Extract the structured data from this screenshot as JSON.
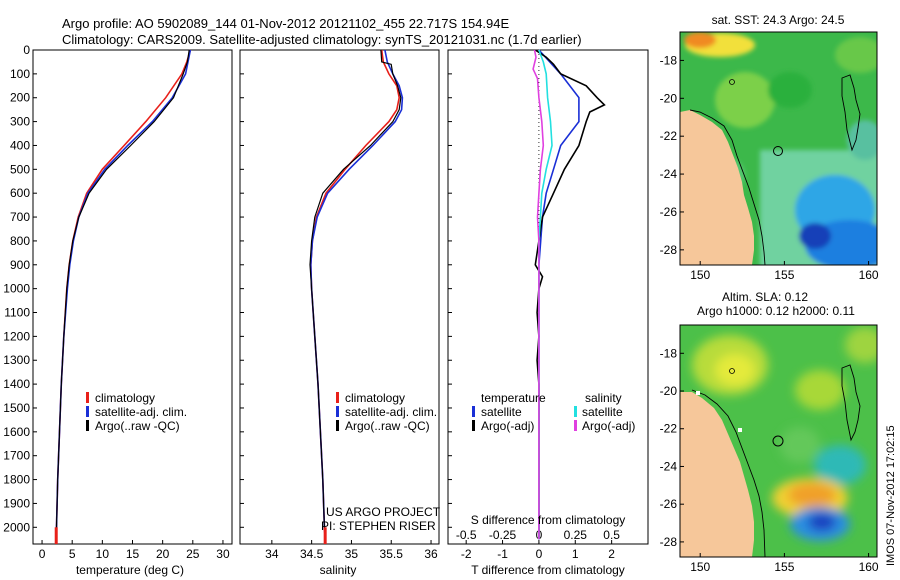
{
  "header": {
    "line1": "Argo profile: AO 5902089_144 01-Nov-2012 20121102_455 22.717S 154.94E",
    "line2": "Climatology: CARS2009. Satellite-adjusted climatology: synTS_20121031.nc (1.7d earlier)"
  },
  "colors": {
    "climatology": "#e8201a",
    "satellite": "#1a2fd6",
    "argo": "#000000",
    "s_satellite": "#22e0e0",
    "s_argo": "#e040e0",
    "land": "#f6c79a"
  },
  "chart_data": [
    {
      "type": "line",
      "title": "",
      "xlabel": "temperature (deg C)",
      "ylabel": "",
      "xlim": [
        -1.5,
        31.5
      ],
      "ylim": [
        2070,
        0
      ],
      "xticks": [
        0,
        5,
        10,
        15,
        20,
        25,
        30
      ],
      "yticks": [
        0,
        100,
        200,
        300,
        400,
        500,
        600,
        700,
        800,
        900,
        1000,
        1100,
        1200,
        1300,
        1400,
        1500,
        1600,
        1700,
        1800,
        1900,
        2000
      ],
      "legend": [
        "climatology",
        "satellite-adj. clim.",
        "Argo(..raw -QC)"
      ],
      "series": [
        {
          "name": "climatology",
          "depth": [
            0,
            50,
            100,
            200,
            300,
            400,
            500,
            600,
            700,
            800,
            900,
            1000,
            1200,
            1400,
            1600,
            1800,
            2000,
            2050
          ],
          "values": [
            24.6,
            24.0,
            23.2,
            20.5,
            17.2,
            13.6,
            10.0,
            7.4,
            6.0,
            5.1,
            4.5,
            4.1,
            3.6,
            3.2,
            2.9,
            2.6,
            2.4,
            2.35
          ]
        },
        {
          "name": "satellite-adj. clim.",
          "depth": [
            0,
            50,
            100,
            200,
            300,
            400,
            500,
            600,
            700,
            800,
            900,
            1000,
            1200,
            1400,
            1600,
            1800,
            2000,
            2050
          ],
          "values": [
            24.6,
            24.2,
            23.8,
            21.6,
            18.3,
            14.2,
            10.4,
            7.6,
            6.1,
            5.2,
            4.6,
            4.2,
            3.6,
            3.2,
            2.9,
            2.6,
            2.4,
            2.35
          ]
        },
        {
          "name": "Argo(..raw -QC)",
          "depth": [
            0,
            50,
            100,
            200,
            300,
            400,
            500,
            600,
            700,
            800,
            900,
            1000,
            1200,
            1400,
            1600,
            1800,
            2000,
            2050
          ],
          "values": [
            24.4,
            24.1,
            23.4,
            21.8,
            18.6,
            14.7,
            10.7,
            7.8,
            6.1,
            5.1,
            4.5,
            4.1,
            3.6,
            3.2,
            2.9,
            2.6,
            2.4,
            2.35
          ]
        }
      ]
    },
    {
      "type": "line",
      "title": "",
      "xlabel": "salinity",
      "ylabel": "",
      "xlim": [
        33.6,
        36.1
      ],
      "ylim": [
        2070,
        0
      ],
      "xticks": [
        34,
        34.5,
        35,
        35.5,
        36
      ],
      "legend": [
        "climatology",
        "satellite-adj. clim.",
        "Argo(..raw -QC)"
      ],
      "annotations": [
        "US ARGO PROJECT",
        "PI: STEPHEN RISER"
      ],
      "series": [
        {
          "name": "climatology",
          "depth": [
            0,
            50,
            100,
            150,
            200,
            250,
            300,
            400,
            500,
            600,
            700,
            800,
            900,
            1000,
            1200,
            1400,
            1600,
            1800,
            2000,
            2050
          ],
          "values": [
            35.38,
            35.4,
            35.47,
            35.57,
            35.6,
            35.57,
            35.47,
            35.18,
            34.92,
            34.68,
            34.56,
            34.51,
            34.49,
            34.5,
            34.54,
            34.58,
            34.61,
            34.64,
            34.66,
            34.67
          ]
        },
        {
          "name": "satellite-adj. clim.",
          "depth": [
            0,
            50,
            100,
            150,
            200,
            250,
            300,
            400,
            500,
            600,
            700,
            800,
            900,
            1000,
            1200,
            1400,
            1600,
            1800,
            2000,
            2050
          ],
          "values": [
            35.42,
            35.45,
            35.52,
            35.6,
            35.64,
            35.63,
            35.55,
            35.27,
            34.97,
            34.7,
            34.57,
            34.51,
            34.49,
            34.5,
            34.54,
            34.58,
            34.61,
            34.64,
            34.66,
            34.67
          ]
        },
        {
          "name": "Argo(..raw -QC)",
          "depth": [
            0,
            50,
            60,
            100,
            150,
            200,
            250,
            300,
            400,
            500,
            600,
            700,
            800,
            900,
            1000,
            1200,
            1400,
            1600,
            1800,
            2000,
            2050
          ],
          "values": [
            35.37,
            35.38,
            35.5,
            35.52,
            35.58,
            35.62,
            35.6,
            35.52,
            35.24,
            34.9,
            34.64,
            34.54,
            34.5,
            34.48,
            34.5,
            34.54,
            34.58,
            34.61,
            34.64,
            34.66,
            34.67
          ]
        }
      ]
    },
    {
      "type": "line",
      "title": "",
      "xlabel": "T difference from climatology",
      "xlabel2": "S difference from climatology",
      "ylabel": "",
      "xlim": [
        -2.5,
        3.0
      ],
      "ylim": [
        2070,
        0
      ],
      "xticks": [
        -2,
        -1,
        0,
        1,
        2
      ],
      "xticks_s": [
        -0.5,
        -0.25,
        0,
        0.25,
        0.5
      ],
      "legend_titles": [
        "temperature",
        "salinity"
      ],
      "legend": [
        "satellite",
        "Argo(-adj)",
        "satellite",
        "Argo(-adj)"
      ],
      "series": [
        {
          "name": "T satellite",
          "depth": [
            0,
            50,
            100,
            200,
            300,
            400,
            500,
            600,
            700,
            800,
            900,
            1000,
            1200,
            1400,
            1600,
            1800,
            2000,
            2050
          ],
          "values": [
            0.0,
            0.3,
            0.6,
            1.1,
            1.1,
            0.6,
            0.4,
            0.2,
            0.1,
            0.05,
            0.0,
            0.0,
            0.0,
            0.0,
            0.0,
            0.0,
            0.0,
            0.0
          ]
        },
        {
          "name": "T Argo(-adj)",
          "depth": [
            0,
            30,
            60,
            100,
            150,
            200,
            230,
            260,
            300,
            400,
            500,
            600,
            700,
            800,
            900,
            950,
            1000,
            1100,
            1200,
            1300,
            1400,
            1600,
            1800,
            2000,
            2050
          ],
          "values": [
            -0.1,
            0.2,
            0.4,
            0.6,
            1.3,
            1.6,
            1.8,
            1.4,
            1.3,
            1.1,
            0.7,
            0.4,
            0.1,
            0.0,
            -0.1,
            0.1,
            0.0,
            -0.05,
            0.0,
            -0.05,
            0.0,
            0.0,
            0.0,
            0.0,
            0.0
          ]
        },
        {
          "name": "S satellite",
          "depth": [
            0,
            50,
            100,
            200,
            300,
            400,
            500,
            600,
            700,
            800,
            900,
            1000,
            1200,
            1400,
            1600,
            1800,
            2000,
            2050
          ],
          "values": [
            0.0,
            0.03,
            0.05,
            0.06,
            0.08,
            0.09,
            0.05,
            0.02,
            0.01,
            0.0,
            0.0,
            0.0,
            0.0,
            0.0,
            0.0,
            0.0,
            0.0,
            0.0
          ]
        },
        {
          "name": "S Argo(-adj)",
          "depth": [
            0,
            30,
            80,
            120,
            200,
            300,
            400,
            500,
            600,
            700,
            800,
            900,
            1000,
            1200,
            1400,
            1600,
            1800,
            2000,
            2050
          ],
          "values": [
            -0.03,
            -0.02,
            -0.04,
            -0.01,
            0.0,
            0.02,
            0.03,
            0.01,
            0.0,
            -0.01,
            0.0,
            0.0,
            0.0,
            0.0,
            0.0,
            0.0,
            0.0,
            0.0,
            0.0
          ]
        }
      ]
    },
    {
      "type": "heatmap",
      "title": "sat. SST: 24.3 Argo: 24.5",
      "xticks": [
        150,
        155,
        160
      ],
      "yticks": [
        -18,
        -20,
        -22,
        -24,
        -26,
        -28
      ],
      "xlim": [
        148.8,
        160.5
      ],
      "ylim": [
        -28.8,
        -16.5
      ],
      "marker": [
        154.94,
        -22.717
      ]
    },
    {
      "type": "heatmap",
      "title": "Altim. SLA: 0.12",
      "subtitle": "Argo h1000: 0.12 h2000: 0.11",
      "xticks": [
        150,
        155,
        160
      ],
      "yticks": [
        -18,
        -20,
        -22,
        -24,
        -26,
        -28
      ],
      "xlim": [
        148.8,
        160.5
      ],
      "ylim": [
        -28.8,
        -16.5
      ],
      "marker": [
        154.94,
        -22.717
      ]
    }
  ],
  "side_label": "IMOS 07-Nov-2012 17:02:15"
}
